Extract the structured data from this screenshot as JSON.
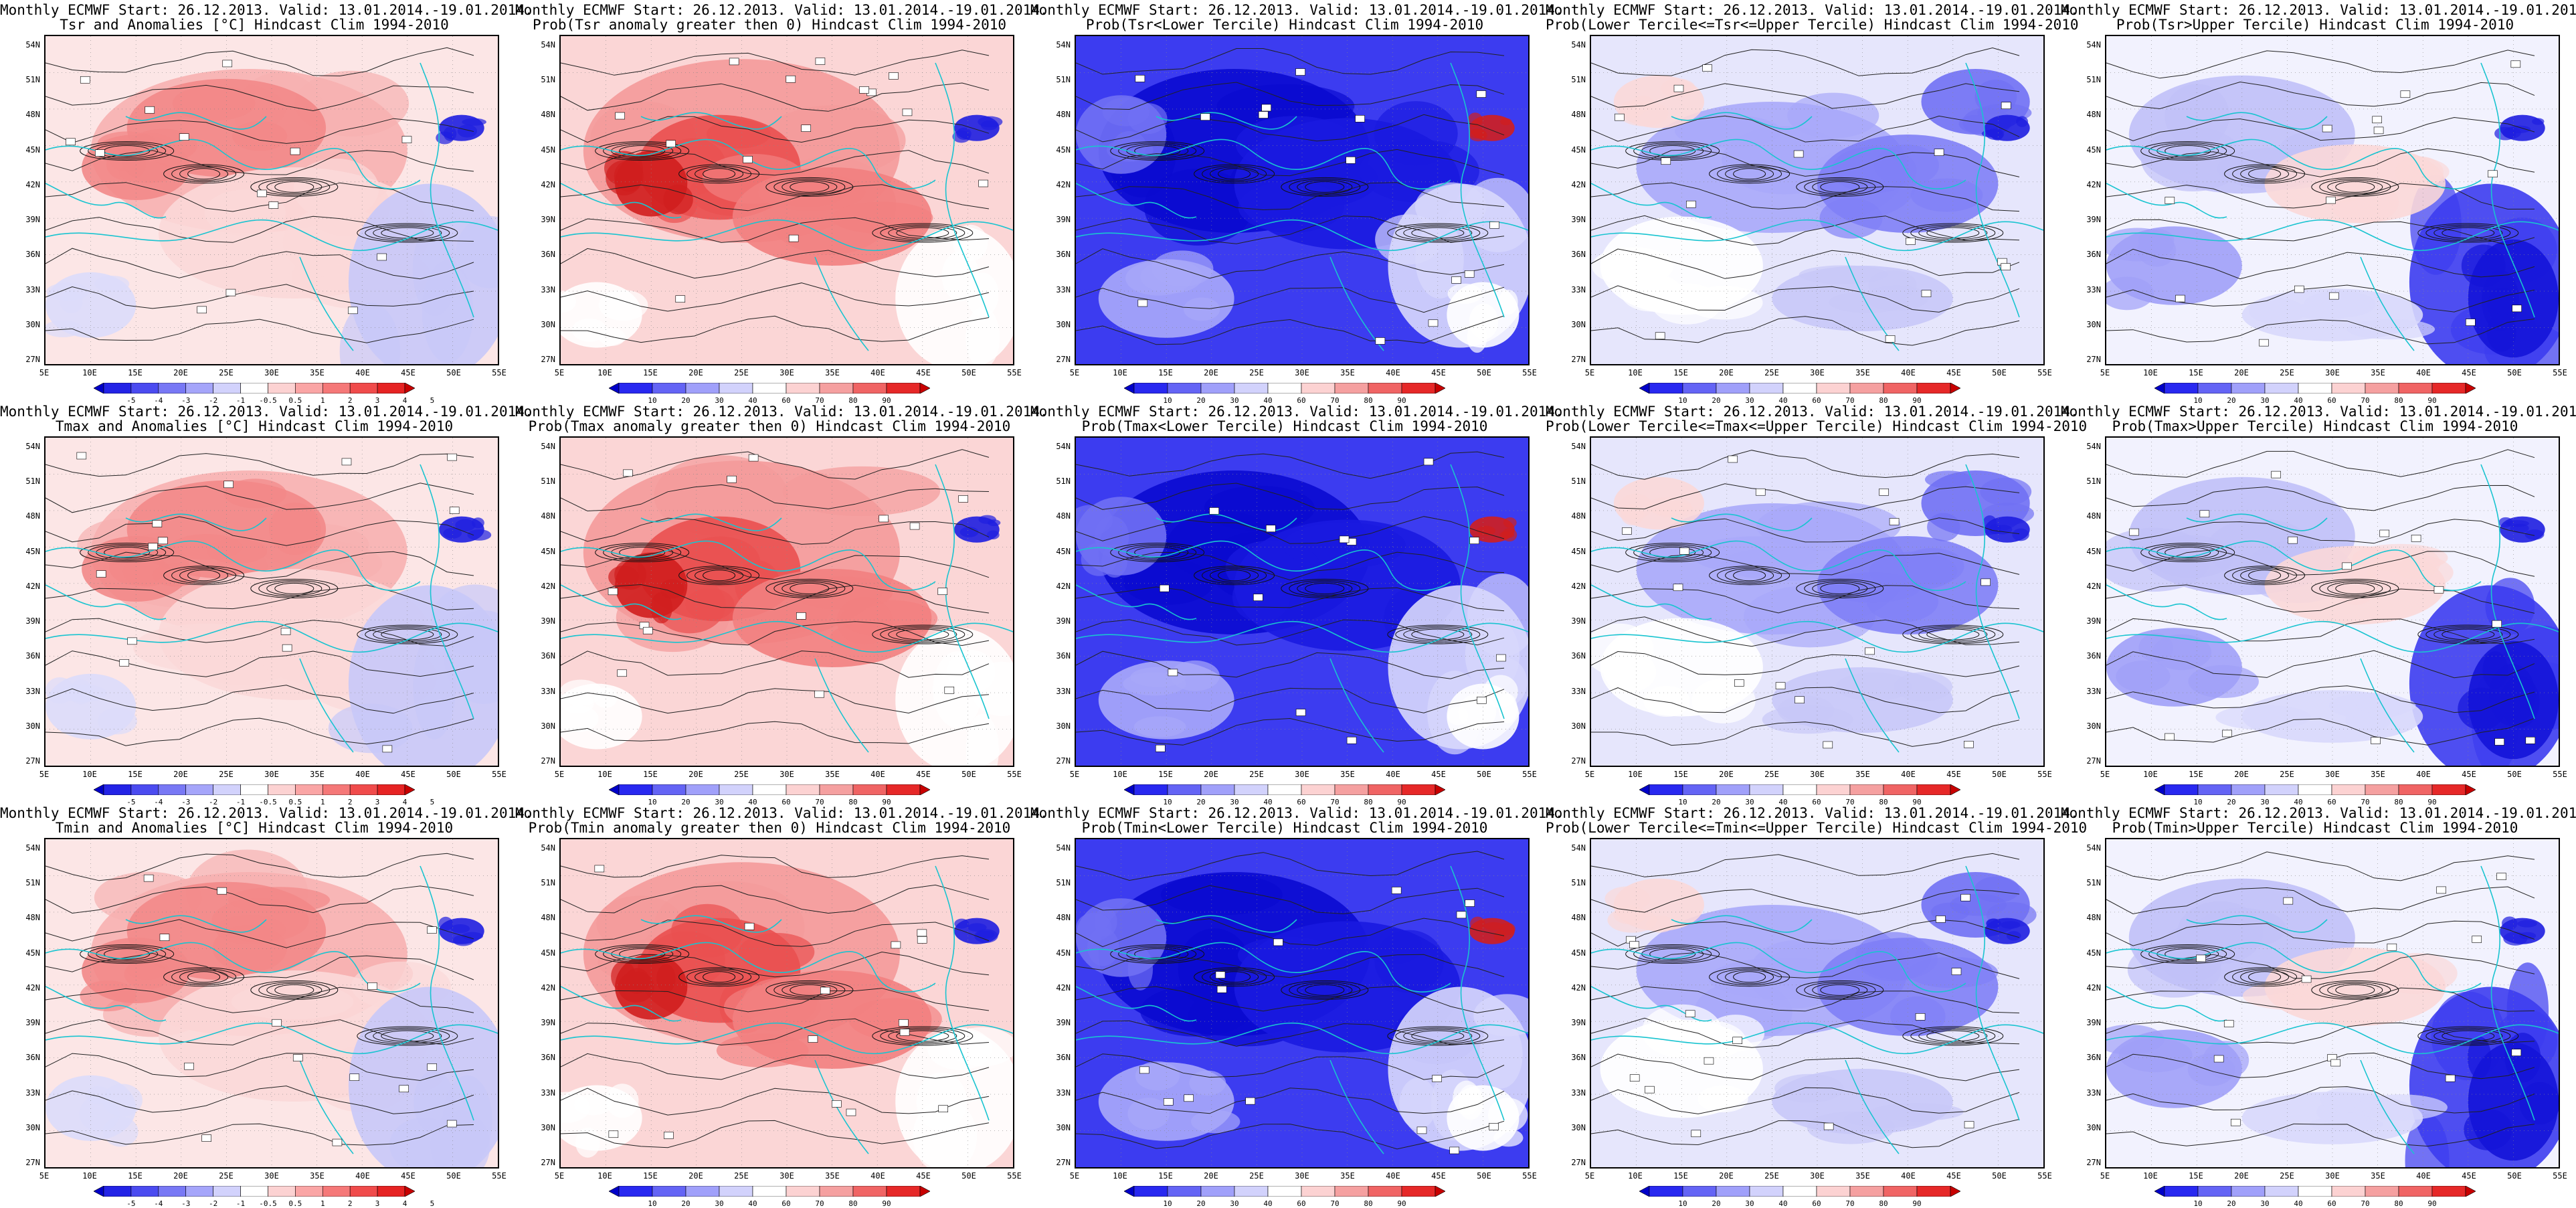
{
  "header_line": "Monthly ECMWF Start: 26.12.2013. Valid: 13.01.2014.-19.01.2014.",
  "lat_labels": [
    "54N",
    "51N",
    "48N",
    "45N",
    "42N",
    "39N",
    "36N",
    "33N",
    "30N",
    "27N"
  ],
  "lon_labels": [
    "5E",
    "10E",
    "15E",
    "20E",
    "25E",
    "30E",
    "35E",
    "40E",
    "45E",
    "50E",
    "55E"
  ],
  "colorbars": {
    "anomaly": {
      "labels": [
        "-5",
        "-4",
        "-3",
        "-2",
        "-1",
        "-0.5",
        "0.5",
        "1",
        "2",
        "3",
        "4",
        "5"
      ],
      "colors": [
        "#0000c8",
        "#2323e6",
        "#4b4bf0",
        "#7878f5",
        "#a5a5fa",
        "#d2d2fc",
        "#ffffff",
        "#fcd2d2",
        "#faa5a5",
        "#f57878",
        "#f04b4b",
        "#e62323",
        "#c80000"
      ]
    },
    "probability": {
      "labels": [
        "10",
        "20",
        "30",
        "40",
        "60",
        "70",
        "80",
        "90"
      ],
      "colors": [
        "#0000c8",
        "#2828f0",
        "#6464f5",
        "#a0a0fa",
        "#d2d2fc",
        "#ffffff",
        "#fcd2d2",
        "#f5a0a0",
        "#f06464",
        "#e62828",
        "#c80000"
      ]
    }
  },
  "panels": [
    {
      "subtitle": "Tsr and Anomalies [°C] Hindcast Clim 1994-2010",
      "scale": "anomaly",
      "field": "anom_warm"
    },
    {
      "subtitle": "Prob(Tsr anomaly greater then 0) Hindcast Clim 1994-2010",
      "scale": "probability",
      "field": "prob_warm"
    },
    {
      "subtitle": "Prob(Tsr<Lower Tercile) Hindcast Clim 1994-2010",
      "scale": "probability",
      "field": "prob_cold"
    },
    {
      "subtitle": "Prob(Lower Tercile<=Tsr<=Upper Tercile) Hindcast Clim 1994-2010",
      "scale": "probability",
      "field": "prob_mid"
    },
    {
      "subtitle": "Prob(Tsr>Upper Tercile) Hindcast Clim 1994-2010",
      "scale": "probability",
      "field": "prob_upper"
    },
    {
      "subtitle": "Tmax and Anomalies [°C] Hindcast Clim 1994-2010",
      "scale": "anomaly",
      "field": "anom_warm"
    },
    {
      "subtitle": "Prob(Tmax anomaly greater then 0) Hindcast Clim 1994-2010",
      "scale": "probability",
      "field": "prob_warm"
    },
    {
      "subtitle": "Prob(Tmax<Lower Tercile) Hindcast Clim 1994-2010",
      "scale": "probability",
      "field": "prob_cold"
    },
    {
      "subtitle": "Prob(Lower Tercile<=Tmax<=Upper Tercile) Hindcast Clim 1994-2010",
      "scale": "probability",
      "field": "prob_mid"
    },
    {
      "subtitle": "Prob(Tmax>Upper Tercile) Hindcast Clim 1994-2010",
      "scale": "probability",
      "field": "prob_upper"
    },
    {
      "subtitle": "Tmin and Anomalies [°C] Hindcast Clim 1994-2010",
      "scale": "anomaly",
      "field": "anom_warm"
    },
    {
      "subtitle": "Prob(Tmin anomaly greater then 0) Hindcast Clim 1994-2010",
      "scale": "probability",
      "field": "prob_warm"
    },
    {
      "subtitle": "Prob(Tmin<Lower Tercile) Hindcast Clim 1994-2010",
      "scale": "probability",
      "field": "prob_cold"
    },
    {
      "subtitle": "Prob(Lower Tercile<=Tmin<=Upper Tercile) Hindcast Clim 1994-2010",
      "scale": "probability",
      "field": "prob_mid"
    },
    {
      "subtitle": "Prob(Tmin>Upper Tercile) Hindcast Clim 1994-2010",
      "scale": "probability",
      "field": "prob_upper"
    }
  ]
}
